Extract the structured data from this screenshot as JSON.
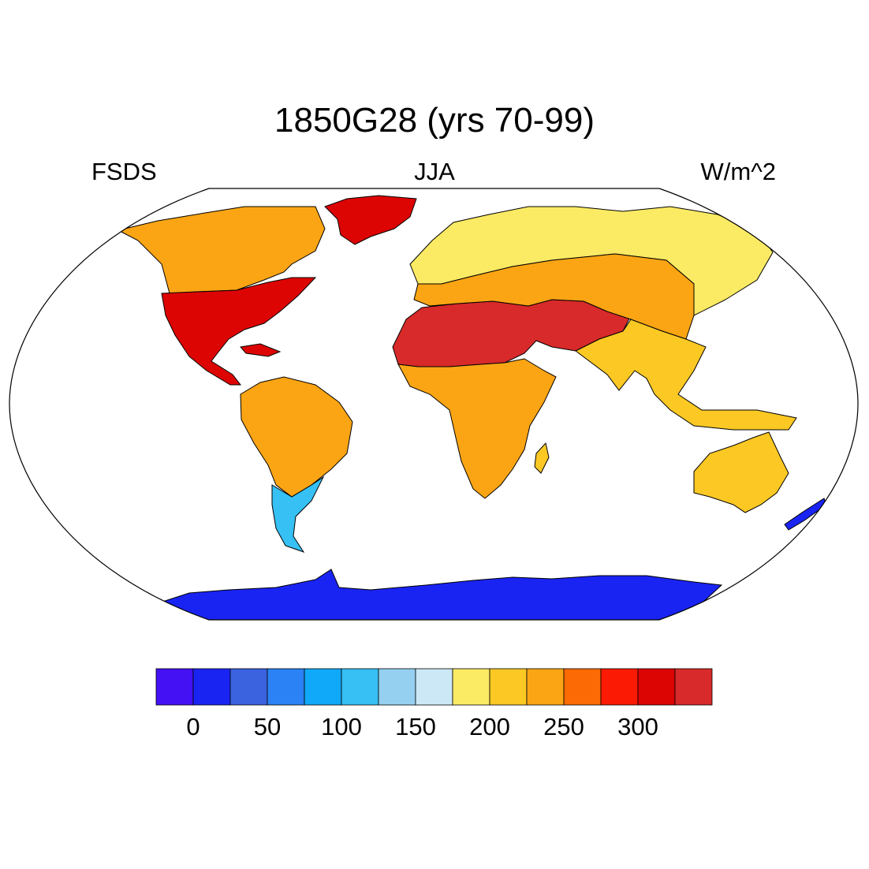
{
  "title": "1850G28 (yrs 70-99)",
  "left_label": "FSDS",
  "center_label": "JJA",
  "right_label": "W/m^2",
  "colorbar": {
    "colors": [
      "#4410f4",
      "#1a24f2",
      "#3b63e0",
      "#2a82f4",
      "#10a8f8",
      "#36c0f4",
      "#96d0f0",
      "#cce8f6",
      "#fbea64",
      "#fbc824",
      "#fba514",
      "#fb6a04",
      "#fb1a04",
      "#dd0404",
      "#d82a2a"
    ],
    "labels": [
      "0",
      "50",
      "100",
      "150",
      "200",
      "250",
      "300"
    ]
  },
  "regions": [
    {
      "name": "antarctica",
      "color": "#1a24f2"
    },
    {
      "name": "greenland",
      "color": "#dd0404"
    },
    {
      "name": "north-america-north",
      "color": "#fba514"
    },
    {
      "name": "north-america-south",
      "color": "#dd0404"
    },
    {
      "name": "south-america",
      "color": "#fba514"
    },
    {
      "name": "patagonia",
      "color": "#36c0f4"
    },
    {
      "name": "africa-south",
      "color": "#fba514"
    },
    {
      "name": "sahara-arabia",
      "color": "#d82a2a"
    },
    {
      "name": "eurasia-north",
      "color": "#fbea64"
    },
    {
      "name": "eurasia-central",
      "color": "#fba514"
    },
    {
      "name": "asia-south",
      "color": "#fbc824"
    },
    {
      "name": "australia",
      "color": "#fbc824"
    },
    {
      "name": "new-zealand",
      "color": "#1a24f2"
    }
  ]
}
